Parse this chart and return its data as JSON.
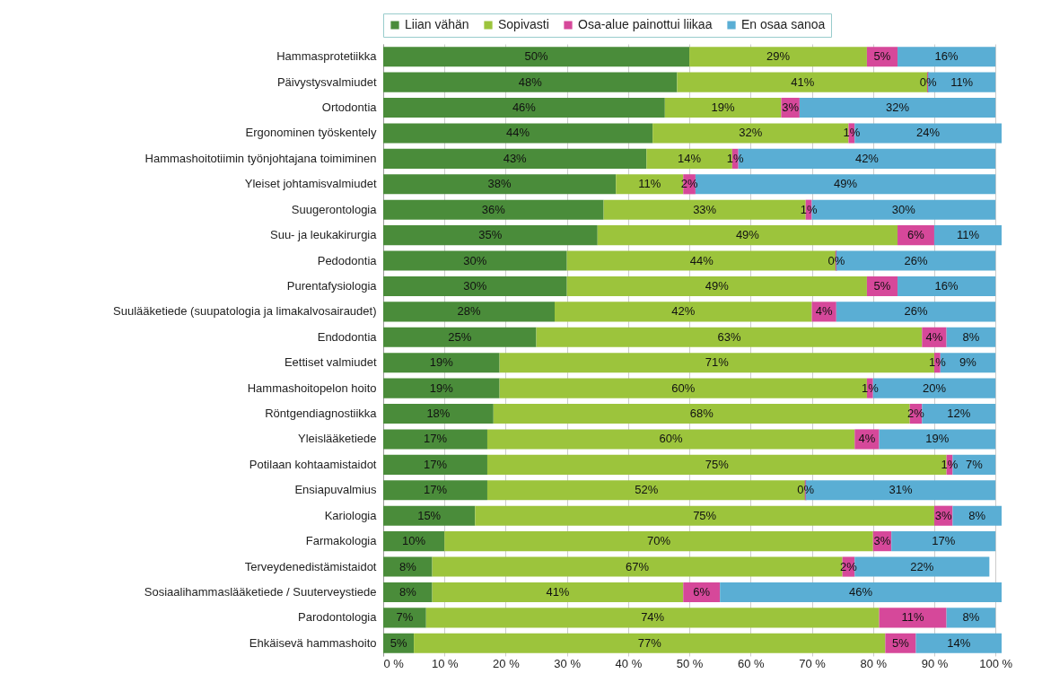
{
  "chart_data": {
    "type": "bar",
    "orientation": "horizontal",
    "stacked": true,
    "categories": [
      "Hammasprotetiikka",
      "Päivystysvalmiudet",
      "Ortodontia",
      "Ergonominen työskentely",
      "Hammashoitotiimin työnjohtajana toimiminen",
      "Yleiset johtamisvalmiudet",
      "Suugerontologia",
      "Suu- ja leukakirurgia",
      "Pedodontia",
      "Purentafysiologia",
      "Suulääketiede (suupatologia ja limakalvosairaudet)",
      "Endodontia",
      "Eettiset valmiudet",
      "Hammashoitopelon hoito",
      "Röntgendiagnostiikka",
      "Yleislääketiede",
      "Potilaan kohtaamistaidot",
      "Ensiapuvalmius",
      "Kariologia",
      "Farmakologia",
      "Terveydenedistämistaidot",
      "Sosiaalihammaslääketiede / Suuterveystiede",
      "Parodontologia",
      "Ehkäisevä hammashoito"
    ],
    "series": [
      {
        "name": "Liian vähän",
        "color": "#4a8c3a",
        "values": [
          50,
          48,
          46,
          44,
          43,
          38,
          36,
          35,
          30,
          30,
          28,
          25,
          19,
          19,
          18,
          17,
          17,
          17,
          15,
          10,
          8,
          8,
          7,
          5
        ],
        "value_labels": [
          "50%",
          "48%",
          "46%",
          "44%",
          "43%",
          "38%",
          "36%",
          "35%",
          "30%",
          "30%",
          "28%",
          "25%",
          "19%",
          "19%",
          "18%",
          "17%",
          "17%",
          "17%",
          "15%",
          "10%",
          "8%",
          "8%",
          "7%",
          "5%"
        ]
      },
      {
        "name": "Sopivasti",
        "color": "#9cc43c",
        "values": [
          29,
          41,
          19,
          32,
          14,
          11,
          33,
          49,
          44,
          49,
          42,
          63,
          71,
          60,
          68,
          60,
          75,
          52,
          75,
          70,
          67,
          41,
          74,
          77
        ],
        "value_labels": [
          "29%",
          "41%",
          "19%",
          "32%",
          "14%",
          "11%",
          "33%",
          "49%",
          "44%",
          "49%",
          "42%",
          "63%",
          "71%",
          "60%",
          "68%",
          "60%",
          "75%",
          "52%",
          "75%",
          "70%",
          "67%",
          "41%",
          "74%",
          "77%"
        ]
      },
      {
        "name": "Osa-alue painottui liikaa",
        "color": "#d6489a",
        "values": [
          5,
          0,
          3,
          1,
          1,
          2,
          1,
          6,
          0,
          5,
          4,
          4,
          1,
          1,
          2,
          4,
          1,
          0,
          3,
          3,
          2,
          6,
          11,
          5
        ],
        "value_labels": [
          "5%",
          "0%",
          "3%",
          "1%",
          "1%",
          "2%",
          "1%",
          "6%",
          "0%",
          "5%",
          "4%",
          "4%",
          "1%",
          "1%",
          "2%",
          "4%",
          "1%",
          "0%",
          "3%",
          "3%",
          "2%",
          "6%",
          "11%",
          "5%"
        ]
      },
      {
        "name": "En osaa sanoa",
        "color": "#5aaed4",
        "values": [
          16,
          11,
          32,
          24,
          42,
          49,
          30,
          11,
          26,
          16,
          26,
          8,
          9,
          20,
          12,
          19,
          7,
          31,
          8,
          17,
          22,
          46,
          8,
          14
        ],
        "value_labels": [
          "16%",
          "11%",
          "32%",
          "24%",
          "42%",
          "49%",
          "30%",
          "11%",
          "26%",
          "16%",
          "26%",
          "8%",
          "9%",
          "20%",
          "12%",
          "19%",
          "7%",
          "31%",
          "8%",
          "17%",
          "22%",
          "46%",
          "8%",
          "14%"
        ]
      }
    ],
    "xlim": [
      0,
      101
    ],
    "xticks": [
      {
        "value": 0,
        "label": "0 %"
      },
      {
        "value": 10,
        "label": "10 %"
      },
      {
        "value": 20,
        "label": "20 %"
      },
      {
        "value": 30,
        "label": "30 %"
      },
      {
        "value": 40,
        "label": "40 %"
      },
      {
        "value": 50,
        "label": "50 %"
      },
      {
        "value": 60,
        "label": "60 %"
      },
      {
        "value": 70,
        "label": "70 %"
      },
      {
        "value": 80,
        "label": "80 %"
      },
      {
        "value": 90,
        "label": "90 %"
      },
      {
        "value": 100,
        "label": "100 %"
      }
    ],
    "grid": "x",
    "legend": "top"
  }
}
